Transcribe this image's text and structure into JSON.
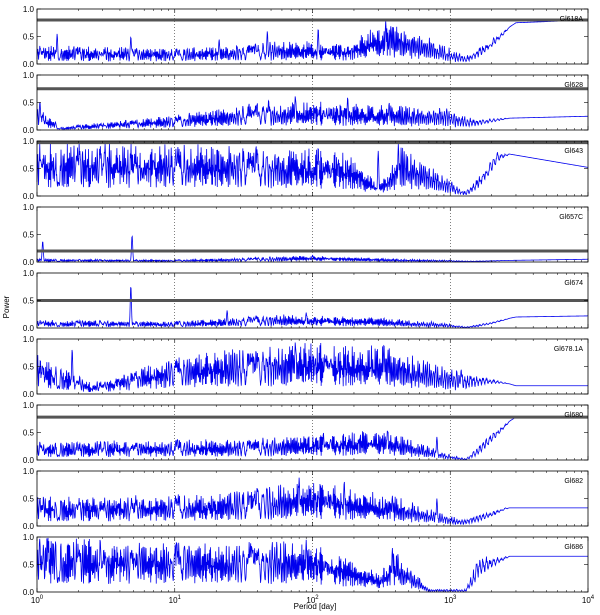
{
  "chart_data": {
    "type": "line",
    "xscale": "log",
    "xlim": [
      1,
      10000
    ],
    "xlabel": "Period [day]",
    "ylabel": "Power",
    "grid": "x-major, dotted",
    "x_tick_labels": [
      "10^0",
      "10^1",
      "10^2",
      "10^3",
      "10^4"
    ],
    "y_tick_labels": [
      "0.0",
      "0.5",
      "1.0"
    ],
    "line_color": "#0000ee",
    "threshold_color": "#555555",
    "panels": [
      {
        "name": "Gl618A",
        "ylim": [
          0,
          1
        ],
        "threshold": 0.8,
        "peaks": [
          [
            1.4,
            0.55
          ],
          [
            4.8,
            0.5
          ],
          [
            21,
            0.45
          ],
          [
            47,
            0.6
          ],
          [
            110,
            0.65
          ],
          [
            340,
            0.79
          ]
        ],
        "envelope": [
          [
            1,
            0.35
          ],
          [
            10,
            0.3
          ],
          [
            60,
            0.42
          ],
          [
            180,
            0.42
          ],
          [
            350,
            0.8
          ],
          [
            700,
            0.5
          ],
          [
            1300,
            0.15
          ],
          [
            3000,
            0.75
          ],
          [
            10000,
            0.8
          ]
        ]
      },
      {
        "name": "Gl628",
        "ylim": [
          0,
          1
        ],
        "threshold": 0.75,
        "peaks": [
          [
            1.05,
            0.52
          ],
          [
            48,
            0.55
          ],
          [
            75,
            0.62
          ],
          [
            180,
            0.6
          ],
          [
            360,
            0.5
          ]
        ],
        "envelope": [
          [
            1,
            0.45
          ],
          [
            1.5,
            0.05
          ],
          [
            3,
            0.15
          ],
          [
            8,
            0.25
          ],
          [
            40,
            0.5
          ],
          [
            120,
            0.52
          ],
          [
            400,
            0.45
          ],
          [
            900,
            0.42
          ],
          [
            1500,
            0.2
          ],
          [
            10000,
            0.25
          ]
        ]
      },
      {
        "name": "Gl643",
        "ylim": [
          0,
          1
        ],
        "threshold": 0.97,
        "peaks": [
          [
            110,
            0.9
          ],
          [
            300,
            0.82
          ],
          [
            420,
            0.95
          ],
          [
            2200,
            0.8
          ]
        ],
        "envelope": [
          [
            1,
            1.0
          ],
          [
            30,
            0.95
          ],
          [
            180,
            0.82
          ],
          [
            300,
            0.2
          ],
          [
            450,
            0.95
          ],
          [
            900,
            0.4
          ],
          [
            1300,
            0.08
          ],
          [
            2200,
            0.8
          ],
          [
            10000,
            0.52
          ]
        ]
      },
      {
        "name": "Gl657C",
        "ylim": [
          0,
          1
        ],
        "threshold": 0.2,
        "peaks": [
          [
            1.1,
            0.38
          ],
          [
            4.9,
            0.48
          ],
          [
            100,
            0.12
          ]
        ],
        "envelope": [
          [
            1,
            0.06
          ],
          [
            10,
            0.04
          ],
          [
            100,
            0.12
          ],
          [
            400,
            0.06
          ],
          [
            1500,
            0.02
          ],
          [
            10000,
            0.05
          ]
        ]
      },
      {
        "name": "Gl674",
        "ylim": [
          0,
          1
        ],
        "threshold": 0.5,
        "peaks": [
          [
            4.8,
            0.77
          ],
          [
            24,
            0.32
          ],
          [
            90,
            0.28
          ]
        ],
        "envelope": [
          [
            1,
            0.15
          ],
          [
            10,
            0.12
          ],
          [
            60,
            0.25
          ],
          [
            300,
            0.2
          ],
          [
            900,
            0.1
          ],
          [
            1300,
            0.02
          ],
          [
            3000,
            0.2
          ],
          [
            10000,
            0.22
          ]
        ]
      },
      {
        "name": "Gl678.1A",
        "ylim": [
          0,
          1
        ],
        "threshold": null,
        "peaks": [
          [
            1.8,
            0.82
          ],
          [
            75,
            0.95
          ],
          [
            330,
            0.92
          ],
          [
            1200,
            0.45
          ]
        ],
        "envelope": [
          [
            1,
            0.75
          ],
          [
            2.5,
            0.2
          ],
          [
            10,
            0.7
          ],
          [
            80,
            0.95
          ],
          [
            330,
            0.9
          ],
          [
            900,
            0.5
          ],
          [
            1600,
            0.35
          ],
          [
            3000,
            0.15
          ],
          [
            10000,
            0.15
          ]
        ]
      },
      {
        "name": "Gl680",
        "ylim": [
          0,
          1
        ],
        "threshold": 0.78,
        "peaks": [
          [
            120,
            0.5
          ],
          [
            350,
            0.55
          ],
          [
            800,
            0.42
          ]
        ],
        "envelope": [
          [
            1,
            0.35
          ],
          [
            30,
            0.38
          ],
          [
            120,
            0.5
          ],
          [
            350,
            0.55
          ],
          [
            1000,
            0.1
          ],
          [
            1300,
            0.02
          ],
          [
            2000,
            0.5
          ],
          [
            3000,
            0.78
          ],
          [
            10000,
            0.78
          ]
        ]
      },
      {
        "name": "Gl682",
        "ylim": [
          0,
          1
        ],
        "threshold": null,
        "peaks": [
          [
            80,
            0.88
          ],
          [
            170,
            0.82
          ],
          [
            380,
            0.55
          ],
          [
            800,
            0.5
          ]
        ],
        "envelope": [
          [
            1,
            0.55
          ],
          [
            20,
            0.6
          ],
          [
            100,
            0.85
          ],
          [
            400,
            0.55
          ],
          [
            1200,
            0.12
          ],
          [
            2500,
            0.33
          ],
          [
            10000,
            0.33
          ]
        ]
      },
      {
        "name": "Gl686",
        "ylim": [
          0,
          1
        ],
        "threshold": null,
        "peaks": [
          [
            1.2,
            1.0
          ],
          [
            90,
            0.95
          ],
          [
            380,
            0.8
          ]
        ],
        "envelope": [
          [
            1,
            1.0
          ],
          [
            20,
            0.95
          ],
          [
            100,
            0.95
          ],
          [
            300,
            0.35
          ],
          [
            400,
            0.8
          ],
          [
            700,
            0.05
          ],
          [
            1300,
            0.05
          ],
          [
            1600,
            0.65
          ],
          [
            10000,
            0.65
          ]
        ]
      }
    ]
  }
}
